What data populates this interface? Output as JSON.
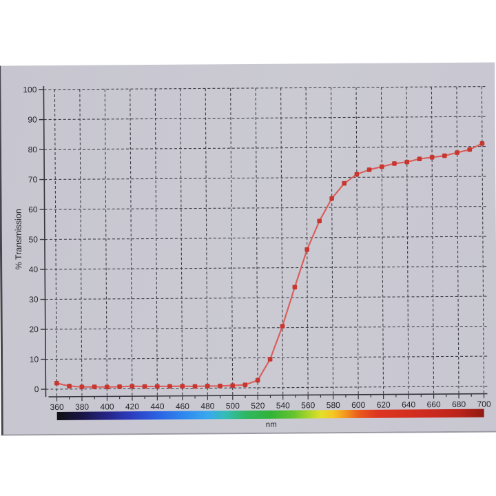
{
  "page": {
    "background_color": "#ffffff",
    "paper_color": "#cac9d2",
    "paper_edge_color": "#45454d"
  },
  "chart_data": {
    "type": "line",
    "title": "",
    "xlabel": "nm",
    "ylabel": "% Transmission",
    "xlim": [
      360,
      700
    ],
    "ylim": [
      0,
      100
    ],
    "grid": "dashed-both-directions",
    "x_tick_labels": [
      360,
      380,
      400,
      420,
      440,
      460,
      480,
      500,
      520,
      540,
      560,
      580,
      600,
      620,
      640,
      660,
      680,
      700
    ],
    "x_minor_tick_step": 10,
    "y_tick_labels": [
      0,
      10,
      20,
      30,
      40,
      50,
      60,
      70,
      80,
      90,
      100
    ],
    "colors": {
      "curve_line": "#d95f5c",
      "marker": "#c8372f",
      "grid": "#3d3d46",
      "axis": "#34343c",
      "text": "#26262c"
    },
    "series": [
      {
        "name": "transmission",
        "marker_shape": "square",
        "x": [
          360,
          370,
          380,
          390,
          400,
          410,
          420,
          430,
          440,
          450,
          460,
          470,
          480,
          490,
          500,
          510,
          520,
          530,
          540,
          550,
          560,
          570,
          580,
          590,
          600,
          610,
          620,
          630,
          640,
          650,
          660,
          670,
          680,
          690,
          700
        ],
        "values": [
          2,
          1,
          0.7,
          0.7,
          0.6,
          0.7,
          0.8,
          0.7,
          0.7,
          0.7,
          0.7,
          0.6,
          0.7,
          0.7,
          0.8,
          1,
          2.5,
          9.5,
          20.5,
          33.5,
          46,
          55.5,
          63,
          68,
          71,
          72.5,
          73.5,
          74.5,
          75,
          76,
          76.5,
          77,
          78,
          79,
          81
        ]
      }
    ],
    "spectrum_bar": {
      "label": "nm",
      "range_nm": [
        360,
        700
      ],
      "stops": [
        {
          "pos": 0.0,
          "color": "#101014"
        },
        {
          "pos": 0.059,
          "color": "#191545"
        },
        {
          "pos": 0.118,
          "color": "#272488"
        },
        {
          "pos": 0.176,
          "color": "#2c3ec0"
        },
        {
          "pos": 0.235,
          "color": "#2b62e2"
        },
        {
          "pos": 0.294,
          "color": "#2e86ee"
        },
        {
          "pos": 0.353,
          "color": "#39a8ef"
        },
        {
          "pos": 0.397,
          "color": "#35bdb2"
        },
        {
          "pos": 0.441,
          "color": "#2fb763"
        },
        {
          "pos": 0.5,
          "color": "#31b338"
        },
        {
          "pos": 0.553,
          "color": "#64c32e"
        },
        {
          "pos": 0.588,
          "color": "#a8d42a"
        },
        {
          "pos": 0.618,
          "color": "#e3df29"
        },
        {
          "pos": 0.647,
          "color": "#f6c622"
        },
        {
          "pos": 0.676,
          "color": "#f4941e"
        },
        {
          "pos": 0.706,
          "color": "#ea5c1c"
        },
        {
          "pos": 0.75,
          "color": "#dd3520"
        },
        {
          "pos": 0.853,
          "color": "#d02b20"
        },
        {
          "pos": 0.941,
          "color": "#bc241b"
        },
        {
          "pos": 1.0,
          "color": "#8f1a13"
        }
      ]
    }
  }
}
